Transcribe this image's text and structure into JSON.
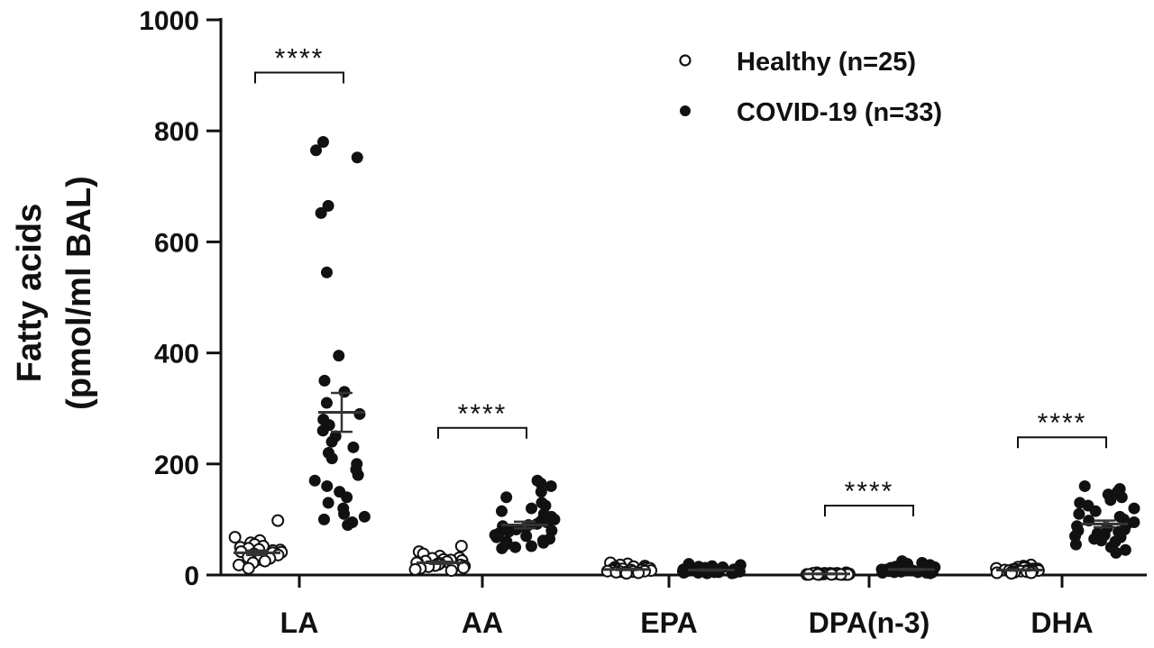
{
  "chart_data": {
    "type": "scatter",
    "ylabel": [
      "Fatty acids",
      "(pmol/ml BAL)"
    ],
    "ylim": [
      0,
      1000
    ],
    "yticks": [
      0,
      200,
      400,
      600,
      800,
      1000
    ],
    "categories": [
      "LA",
      "AA",
      "EPA",
      "DPA(n-3)",
      "DHA"
    ],
    "legend": {
      "position": "top-right"
    },
    "series": [
      {
        "name": "Healthy (n=25)",
        "marker": "open-circle",
        "color": "#111111",
        "mean": [
          40,
          22,
          10,
          2,
          9
        ],
        "sem": [
          4,
          2,
          1,
          0.5,
          1
        ],
        "points": [
          [
            98,
            68,
            62,
            58,
            55,
            52,
            50,
            48,
            46,
            45,
            44,
            42,
            41,
            40,
            38,
            36,
            35,
            33,
            32,
            30,
            28,
            25,
            22,
            18,
            12
          ],
          [
            52,
            42,
            38,
            34,
            31,
            30,
            28,
            27,
            26,
            25,
            24,
            23,
            22,
            21,
            20,
            19,
            18,
            17,
            16,
            15,
            14,
            13,
            12,
            10,
            8
          ],
          [
            22,
            20,
            18,
            16,
            15,
            14,
            13,
            12,
            11,
            11,
            10,
            10,
            9,
            9,
            8,
            8,
            7,
            7,
            6,
            6,
            5,
            5,
            4,
            4,
            3
          ],
          [
            4,
            4,
            3,
            3,
            3,
            3,
            2,
            2,
            2,
            2,
            2,
            2,
            2,
            2,
            2,
            1,
            1,
            1,
            1,
            1,
            1,
            1,
            1,
            1,
            1
          ],
          [
            18,
            16,
            15,
            14,
            13,
            12,
            11,
            11,
            10,
            10,
            9,
            9,
            9,
            8,
            8,
            8,
            7,
            7,
            6,
            6,
            5,
            5,
            4,
            4,
            3
          ]
        ]
      },
      {
        "name": "COVID-19 (n=33)",
        "marker": "filled-circle",
        "color": "#111111",
        "mean": [
          293,
          90,
          9,
          10,
          92
        ],
        "sem": [
          35,
          6,
          1,
          1,
          6
        ],
        "points": [
          [
            780,
            765,
            752,
            665,
            652,
            545,
            395,
            350,
            330,
            310,
            290,
            280,
            270,
            260,
            250,
            240,
            230,
            220,
            210,
            200,
            190,
            180,
            170,
            160,
            150,
            140,
            130,
            120,
            110,
            105,
            100,
            95,
            90
          ],
          [
            170,
            165,
            160,
            150,
            140,
            130,
            125,
            120,
            115,
            110,
            105,
            100,
            98,
            95,
            92,
            90,
            88,
            85,
            82,
            80,
            78,
            75,
            72,
            70,
            68,
            65,
            62,
            60,
            58,
            55,
            52,
            50,
            48
          ],
          [
            20,
            18,
            16,
            15,
            14,
            13,
            12,
            12,
            11,
            11,
            10,
            10,
            10,
            9,
            9,
            9,
            8,
            8,
            8,
            7,
            7,
            7,
            6,
            6,
            6,
            5,
            5,
            5,
            4,
            4,
            4,
            3,
            3
          ],
          [
            25,
            22,
            20,
            18,
            16,
            15,
            14,
            13,
            12,
            12,
            11,
            11,
            10,
            10,
            10,
            9,
            9,
            9,
            8,
            8,
            8,
            7,
            7,
            7,
            6,
            6,
            6,
            5,
            5,
            5,
            4,
            4,
            3
          ],
          [
            160,
            155,
            150,
            145,
            140,
            135,
            130,
            125,
            120,
            115,
            110,
            105,
            100,
            98,
            95,
            92,
            90,
            88,
            85,
            82,
            80,
            78,
            75,
            72,
            70,
            68,
            65,
            62,
            60,
            55,
            50,
            45,
            40
          ]
        ]
      }
    ],
    "annotations": [
      {
        "category": "LA",
        "text": "****",
        "y": 905
      },
      {
        "category": "AA",
        "text": "****",
        "y": 265
      },
      {
        "category": "DPA(n-3)",
        "text": "****",
        "y": 125
      },
      {
        "category": "DHA",
        "text": "****",
        "y": 248
      }
    ]
  }
}
